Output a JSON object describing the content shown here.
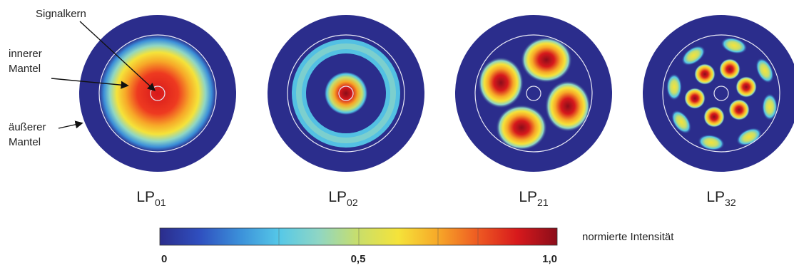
{
  "modes": [
    {
      "main": "LP",
      "sub": "01"
    },
    {
      "main": "LP",
      "sub": "02"
    },
    {
      "main": "LP",
      "sub": "21"
    },
    {
      "main": "LP",
      "sub": "32"
    }
  ],
  "annotations": {
    "core": "Signalkern",
    "inner_cladding": [
      "innerer",
      "Mantel"
    ],
    "outer_cladding": [
      "äußerer",
      "Mantel"
    ]
  },
  "colorbar": {
    "title": "normierte Intensität",
    "ticks": [
      "0",
      "0,5",
      "1,0"
    ],
    "colors": [
      "#2b2d8c",
      "#2f4fbf",
      "#3b8fd9",
      "#55c8e8",
      "#8fd6c4",
      "#c9de6a",
      "#f5e33a",
      "#f7a828",
      "#ee5a22",
      "#d7191c",
      "#8b0d1a"
    ]
  },
  "colors": {
    "background": "#2b2d8c",
    "ring_line": "#e8e8f5"
  }
}
